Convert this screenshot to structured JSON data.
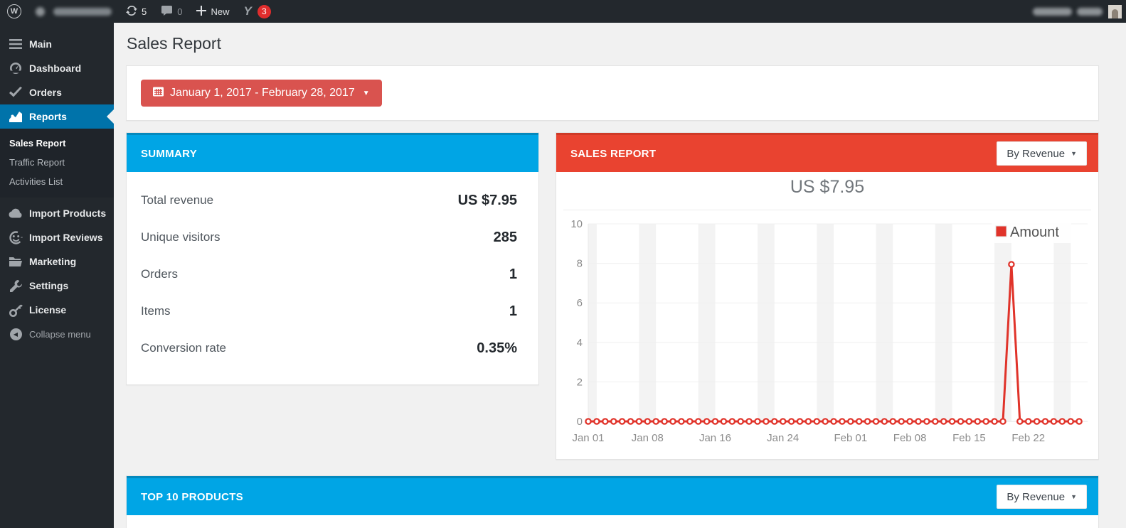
{
  "colors": {
    "admin_bar_bg": "#23282d",
    "sidebar_bg": "#23282d",
    "sidebar_submenu_bg": "#1f242a",
    "sidebar_active_blue": "#0073aa",
    "panel_header_blue": "#00a5e5",
    "panel_header_blue_dark": "#0489bd",
    "panel_header_red": "#e94330",
    "panel_header_red_dark": "#cf3a27",
    "date_button_red": "#d9534f",
    "chart_line_red": "#e0332a",
    "content_bg": "#f1f1f1",
    "weekend_band_gray": "#f3f3f3"
  },
  "admin_bar": {
    "updates_count": "5",
    "comments_count": "0",
    "new_label": "New",
    "yoast_notification_count": "3"
  },
  "sidebar": {
    "items_top": [
      {
        "label": "Main"
      },
      {
        "label": "Dashboard"
      },
      {
        "label": "Orders"
      },
      {
        "label": "Reports"
      }
    ],
    "reports_submenu": [
      {
        "label": "Sales Report"
      },
      {
        "label": "Traffic Report"
      },
      {
        "label": "Activities List"
      }
    ],
    "items_bottom": [
      {
        "label": "Import Products"
      },
      {
        "label": "Import Reviews"
      },
      {
        "label": "Marketing"
      },
      {
        "label": "Settings"
      },
      {
        "label": "License"
      }
    ],
    "collapse_label": "Collapse menu"
  },
  "page": {
    "title": "Sales Report"
  },
  "date_filter": {
    "label": "January 1, 2017 - February 28, 2017"
  },
  "summary_panel": {
    "title": "SUMMARY",
    "rows": [
      {
        "label": "Total revenue",
        "value": "US $7.95"
      },
      {
        "label": "Unique visitors",
        "value": "285"
      },
      {
        "label": "Orders",
        "value": "1"
      },
      {
        "label": "Items",
        "value": "1"
      },
      {
        "label": "Conversion rate",
        "value": "0.35%"
      }
    ]
  },
  "sales_panel": {
    "title": "SALES REPORT",
    "filter_label": "By Revenue"
  },
  "top_products_panel": {
    "title": "TOP 10 PRODUCTS",
    "filter_label": "By Revenue"
  },
  "chart_data": {
    "type": "line",
    "title": "US $7.95",
    "x_range_dates": [
      "Jan 01",
      "Feb 28"
    ],
    "x_ticks": [
      {
        "day": 0,
        "label": "Jan 01"
      },
      {
        "day": 7,
        "label": "Jan 08"
      },
      {
        "day": 15,
        "label": "Jan 16"
      },
      {
        "day": 23,
        "label": "Jan 24"
      },
      {
        "day": 31,
        "label": "Feb 01"
      },
      {
        "day": 38,
        "label": "Feb 08"
      },
      {
        "day": 45,
        "label": "Feb 15"
      },
      {
        "day": 52,
        "label": "Feb 22"
      }
    ],
    "y_ticks": [
      0,
      2,
      4,
      6,
      8,
      10
    ],
    "ylim": [
      0,
      10
    ],
    "xlim_days": [
      0,
      59
    ],
    "grid": {
      "horizontal_gridlines": true,
      "weekend_bands": true
    },
    "weekend_bands_days": [
      [
        0,
        1
      ],
      [
        6,
        8
      ],
      [
        13,
        15
      ],
      [
        20,
        22
      ],
      [
        27,
        29
      ],
      [
        34,
        36
      ],
      [
        41,
        43
      ],
      [
        48,
        50
      ],
      [
        55,
        57
      ]
    ],
    "legend": {
      "label": "Amount",
      "position": "top-right"
    },
    "spike": {
      "day_index": 50,
      "date_label": "Feb 20",
      "value": 7.95
    },
    "series": [
      {
        "name": "Amount",
        "color": "#e0332a",
        "values": [
          0,
          0,
          0,
          0,
          0,
          0,
          0,
          0,
          0,
          0,
          0,
          0,
          0,
          0,
          0,
          0,
          0,
          0,
          0,
          0,
          0,
          0,
          0,
          0,
          0,
          0,
          0,
          0,
          0,
          0,
          0,
          0,
          0,
          0,
          0,
          0,
          0,
          0,
          0,
          0,
          0,
          0,
          0,
          0,
          0,
          0,
          0,
          0,
          0,
          0,
          7.95,
          0,
          0,
          0,
          0,
          0,
          0,
          0,
          0
        ]
      }
    ]
  }
}
